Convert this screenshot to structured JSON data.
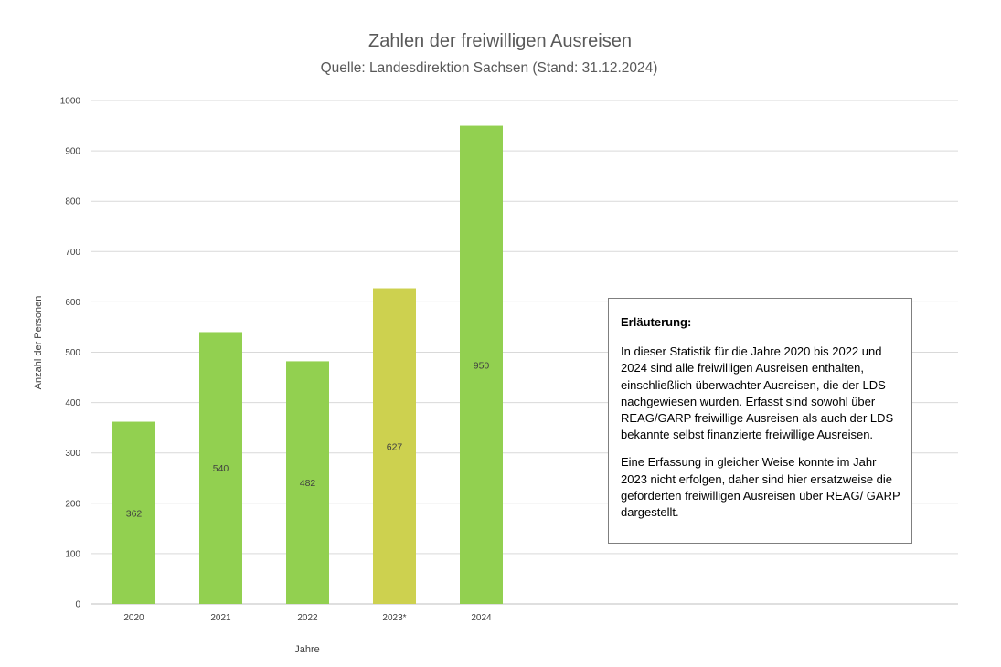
{
  "chart_data": {
    "type": "bar",
    "title": "Zahlen der freiwilligen Ausreisen",
    "subtitle": "Quelle: Landesdirektion Sachsen (Stand: 31.12.2024)",
    "xlabel": "Jahre",
    "ylabel": "Anzahl der Personen",
    "categories": [
      "2020",
      "2021",
      "2022",
      "2023*",
      "2024"
    ],
    "values": [
      362,
      540,
      482,
      627,
      950
    ],
    "bar_colors": [
      "#92d050",
      "#92d050",
      "#92d050",
      "#cdd14f",
      "#92d050"
    ],
    "ylim": [
      0,
      1000
    ],
    "yticks": [
      0,
      100,
      200,
      300,
      400,
      500,
      600,
      700,
      800,
      900,
      1000
    ],
    "grid": true,
    "data_labels": true
  },
  "note": {
    "heading": "Erläuterung:",
    "paragraph1": "In dieser Statistik für die Jahre 2020 bis 2022 und 2024 sind alle freiwilligen Ausreisen enthalten, einschließlich überwachter Ausreisen, die der LDS nachgewiesen wurden. Erfasst sind sowohl über REAG/GARP freiwillige Ausreisen als auch der LDS bekannte selbst finanzierte freiwillige Ausreisen.",
    "paragraph2": "Eine Erfassung in gleicher Weise konnte im Jahr 2023 nicht erfolgen, daher sind hier ersatzweise die geförderten freiwilligen Ausreisen über REAG/ GARP dargestellt."
  }
}
